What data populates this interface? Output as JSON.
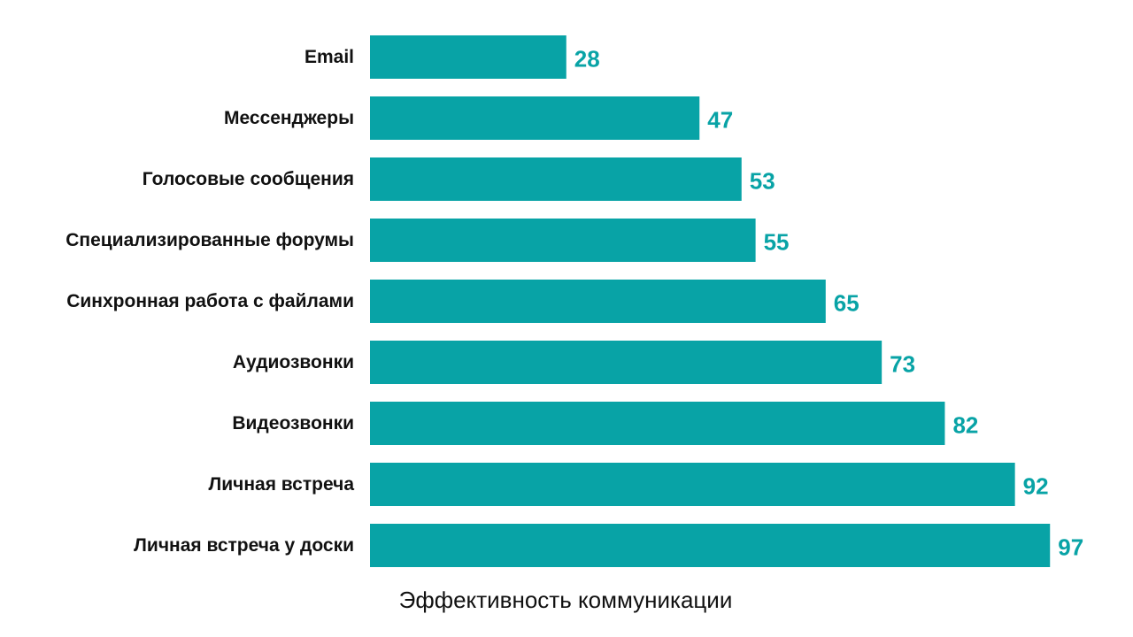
{
  "colors": {
    "bar": "#08A3A6",
    "value_label": "#08A3A6",
    "text": "#111111",
    "background": "#ffffff"
  },
  "chart_data": {
    "type": "bar",
    "orientation": "horizontal",
    "categories": [
      "Email",
      "Мессенджеры",
      "Голосовые сообщения",
      "Специализированные форумы",
      "Синхронная работа с файлами",
      "Аудиозвонки",
      "Видеозвонки",
      "Личная встреча",
      "Личная встреча у доски"
    ],
    "values": [
      28,
      47,
      53,
      55,
      65,
      73,
      82,
      92,
      97
    ],
    "title": "",
    "xlabel": "Эффективность коммуникации",
    "ylabel": "",
    "xlim": [
      0,
      100
    ],
    "grid": false,
    "legend": "none",
    "data_labels": true
  }
}
